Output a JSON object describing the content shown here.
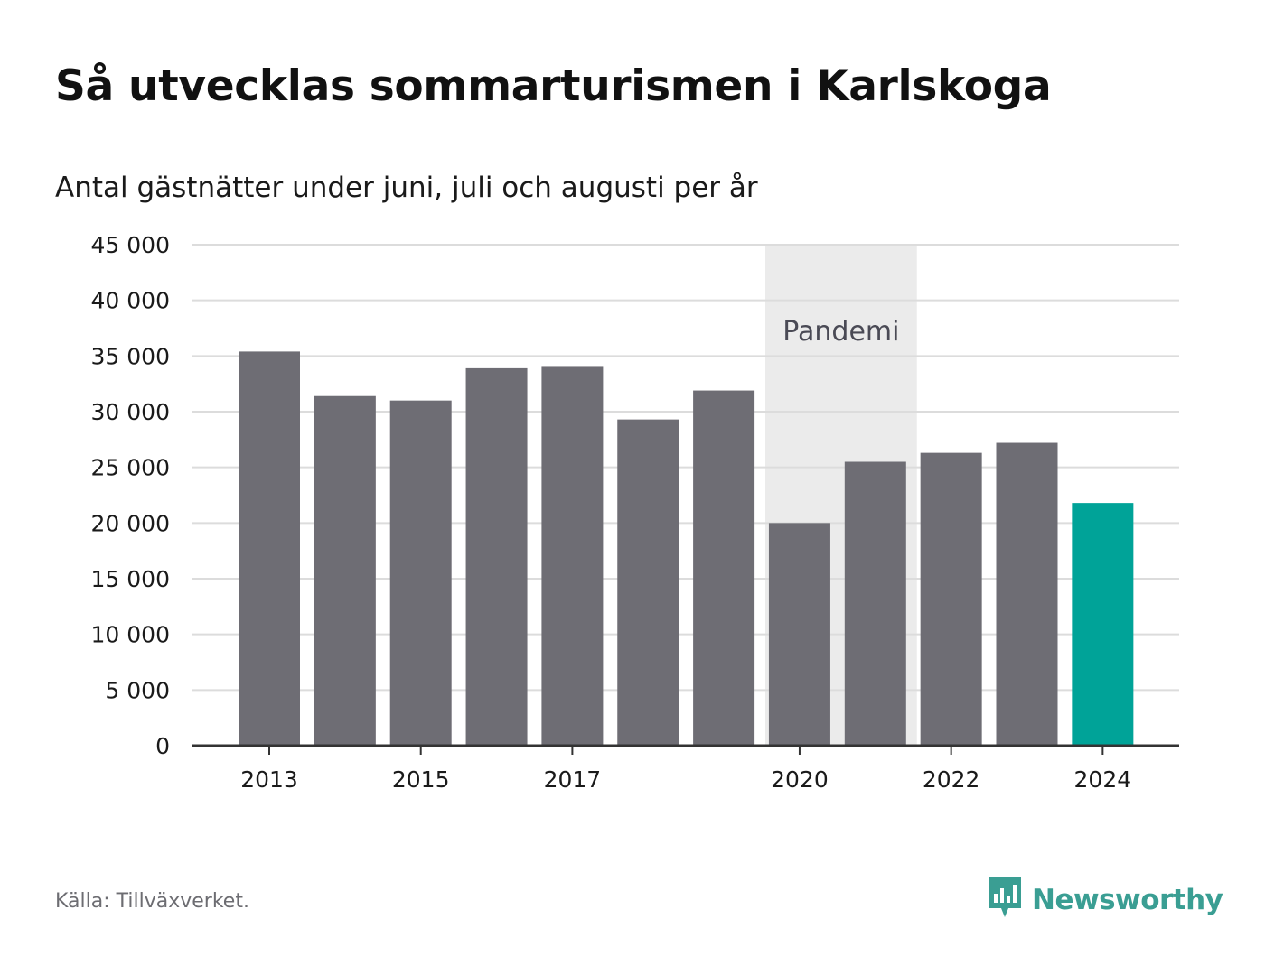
{
  "title": "Så utvecklas sommarturismen i Karlskoga",
  "subtitle": "Antal gästnätter under juni, juli och augusti per år",
  "source": "Källa: Tillväxverket.",
  "brand": {
    "name": "Newsworthy",
    "icon": "newsworthy-logo-icon",
    "color": "#3a9e93"
  },
  "colors": {
    "bar_default": "#6e6d74",
    "bar_highlight": "#00a398",
    "annotation_band": "#ebebeb",
    "gridline": "#dcdcdc",
    "axis": "#333333"
  },
  "chart_data": {
    "type": "bar",
    "categories": [
      "2013",
      "2014",
      "2015",
      "2016",
      "2017",
      "2018",
      "2019",
      "2020",
      "2021",
      "2022",
      "2023",
      "2024"
    ],
    "values": [
      35400,
      31400,
      31000,
      33900,
      34100,
      29300,
      31900,
      20000,
      25500,
      26300,
      27200,
      21800
    ],
    "highlight_category": "2024",
    "x_tick_labels": [
      "2013",
      "2015",
      "2017",
      "2020",
      "2022",
      "2024"
    ],
    "y_tick_labels": [
      "0",
      "5 000",
      "10 000",
      "15 000",
      "20 000",
      "25 000",
      "30 000",
      "35 000",
      "40 000",
      "45 000"
    ],
    "ylim": [
      0,
      45000
    ],
    "ytick_step": 5000,
    "grid": true,
    "xlabel": "",
    "ylabel": "",
    "annotation": {
      "label": "Pandemi",
      "from": "2020",
      "to": "2021"
    }
  }
}
